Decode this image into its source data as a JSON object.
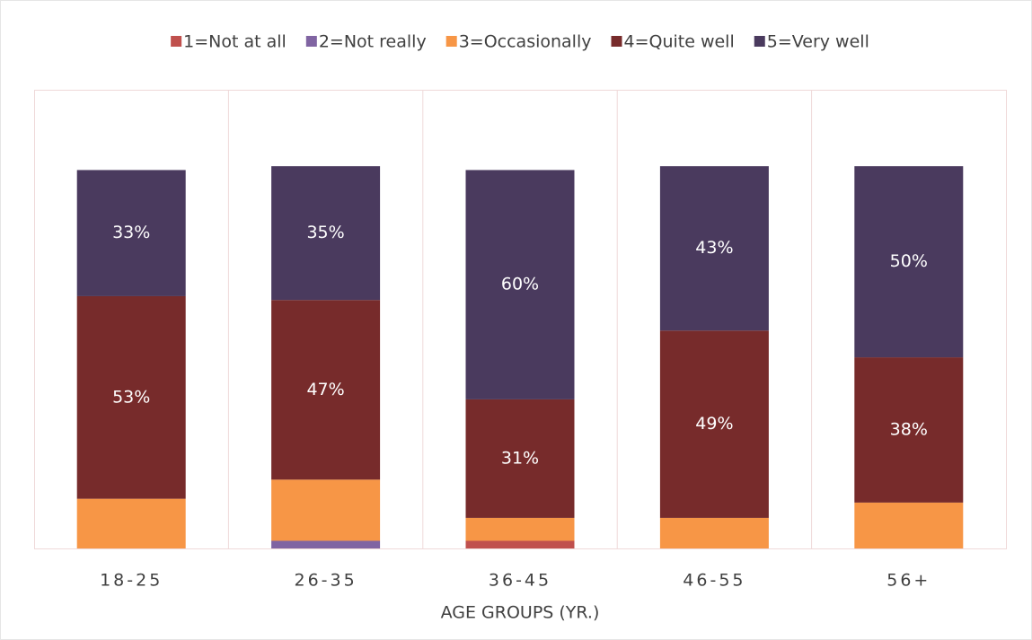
{
  "chart_data": {
    "type": "stacked_bar",
    "x_label": "AGE GROUPS (YR.)",
    "categories": [
      "18-25",
      "26-35",
      "36-45",
      "46-55",
      "56+"
    ],
    "ylim": [
      0,
      120
    ],
    "series": [
      {
        "name": "1=Not at all",
        "color": "#c0504d",
        "values": [
          0,
          0,
          2,
          0,
          0
        ]
      },
      {
        "name": "2=Not really",
        "color": "#8064a2",
        "values": [
          0,
          2,
          0,
          0,
          0
        ]
      },
      {
        "name": "3=Occasionally",
        "color": "#f79646",
        "values": [
          13,
          16,
          6,
          8,
          12
        ]
      },
      {
        "name": "4=Quite well",
        "color": "#772b2b",
        "values": [
          53,
          47,
          31,
          49,
          38
        ],
        "value_labels": [
          "53%",
          "47%",
          "31%",
          "49%",
          "38%"
        ]
      },
      {
        "name": "5=Very well",
        "color": "#4a3a5e",
        "values": [
          33,
          35,
          60,
          43,
          50
        ],
        "value_labels": [
          "33%",
          "35%",
          "60%",
          "43%",
          "50%"
        ]
      }
    ]
  }
}
